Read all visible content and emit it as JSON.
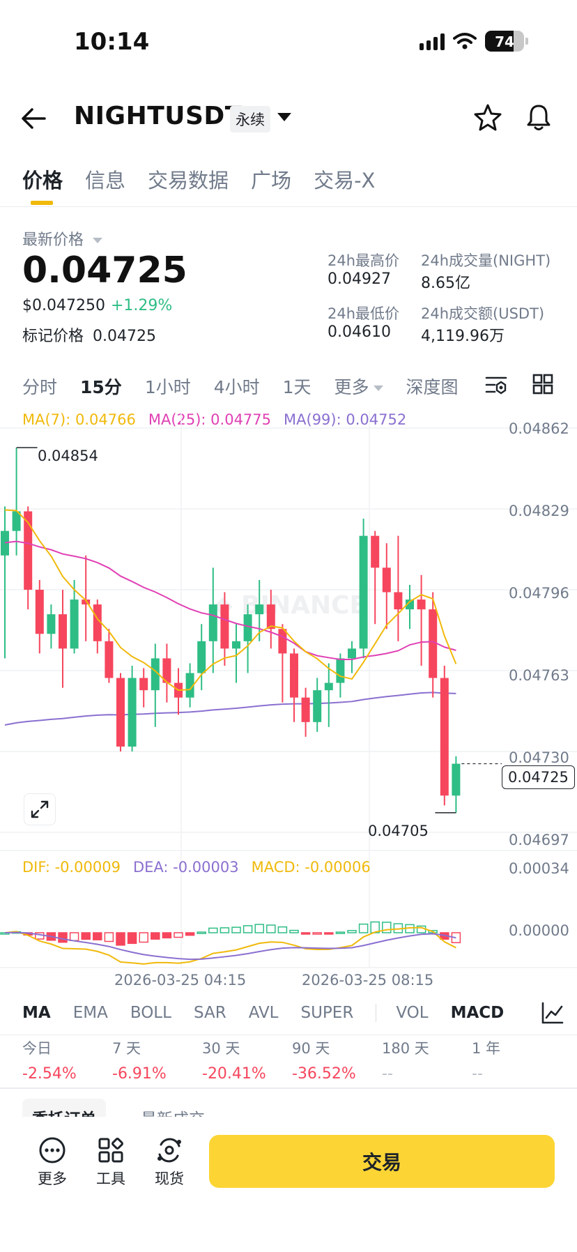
{
  "status_bar": {
    "time": "10:14",
    "battery": "74"
  },
  "header": {
    "symbol": "NIGHTUSDT",
    "badge": "永续"
  },
  "tabs": [
    "价格",
    "信息",
    "交易数据",
    "广场",
    "交易-X"
  ],
  "price_section": {
    "latest_label": "最新价格",
    "price": "0.04725",
    "usd": "$0.047250",
    "change": "+1.29%",
    "mark_label": "标记价格",
    "mark_value": "0.04725",
    "high_label": "24h最高价",
    "high": "0.04927",
    "low_label": "24h最低价",
    "low": "0.04610",
    "vol_label": "24h成交量(NIGHT)",
    "vol": "8.65亿",
    "turnover_label": "24h成交额(USDT)",
    "turnover": "4,119.96万"
  },
  "timeframes": [
    "分时",
    "15分",
    "1小时",
    "4小时",
    "1天",
    "更多",
    "深度图"
  ],
  "ma_legend": {
    "ma7": "MA(7): 0.04766",
    "ma25": "MA(25): 0.04775",
    "ma99": "MA(99): 0.04752"
  },
  "macd_legend": {
    "dif": "DIF: -0.00009",
    "dea": "DEA: -0.00003",
    "macd": "MACD: -0.00006"
  },
  "colors": {
    "up": "#2ebd85",
    "down": "#f6465d",
    "ma7": "#f0b90b",
    "ma25": "#e040b4",
    "ma99": "#8a6fd0",
    "accent": "#fcd535"
  },
  "chart_data": {
    "type": "candlestick",
    "price_axis_ticks": [
      "0.04862",
      "0.04829",
      "0.04796",
      "0.04763",
      "0.04730",
      "0.04697"
    ],
    "macd_axis_ticks": [
      "0.00034",
      "0.00000"
    ],
    "x_labels": [
      "2026-03-25 04:15",
      "2026-03-25 08:15"
    ],
    "high_marker": "0.04854",
    "low_marker": "0.04705",
    "last_price": "0.04725",
    "ylim": [
      0.04697,
      0.04862
    ],
    "candles": [
      [
        0.0481,
        0.0482,
        0.04768,
        0.0483
      ],
      [
        0.0482,
        0.04828,
        0.0481,
        0.04854
      ],
      [
        0.04828,
        0.04796,
        0.04788,
        0.0483
      ],
      [
        0.04796,
        0.04778,
        0.0477,
        0.048
      ],
      [
        0.04778,
        0.04786,
        0.04772,
        0.0479
      ],
      [
        0.04786,
        0.04772,
        0.04756,
        0.04796
      ],
      [
        0.04772,
        0.04792,
        0.0477,
        0.048
      ],
      [
        0.04792,
        0.0479,
        0.04775,
        0.0481
      ],
      [
        0.0479,
        0.04775,
        0.0477,
        0.04792
      ],
      [
        0.04775,
        0.0476,
        0.04758,
        0.0478
      ],
      [
        0.0476,
        0.04732,
        0.0473,
        0.04762
      ],
      [
        0.04732,
        0.0476,
        0.0473,
        0.04765
      ],
      [
        0.0476,
        0.04755,
        0.04748,
        0.04764
      ],
      [
        0.04755,
        0.04768,
        0.0474,
        0.04774
      ],
      [
        0.04768,
        0.04758,
        0.0475,
        0.04774
      ],
      [
        0.04758,
        0.04752,
        0.04745,
        0.04764
      ],
      [
        0.04752,
        0.04762,
        0.04748,
        0.04766
      ],
      [
        0.04762,
        0.04775,
        0.04755,
        0.04782
      ],
      [
        0.04775,
        0.0479,
        0.04762,
        0.04805
      ],
      [
        0.0479,
        0.04772,
        0.04765,
        0.04795
      ],
      [
        0.04772,
        0.04775,
        0.04758,
        0.04782
      ],
      [
        0.04775,
        0.04786,
        0.04762,
        0.0479
      ],
      [
        0.04786,
        0.0479,
        0.04775,
        0.048
      ],
      [
        0.0479,
        0.0478,
        0.04772,
        0.04796
      ],
      [
        0.0478,
        0.0477,
        0.0475,
        0.04782
      ],
      [
        0.0477,
        0.04752,
        0.04742,
        0.04772
      ],
      [
        0.04752,
        0.04742,
        0.04736,
        0.04756
      ],
      [
        0.04742,
        0.04755,
        0.04738,
        0.0476
      ],
      [
        0.04755,
        0.04758,
        0.0474,
        0.04766
      ],
      [
        0.04758,
        0.04768,
        0.04752,
        0.0477
      ],
      [
        0.04768,
        0.04772,
        0.04762,
        0.04775
      ],
      [
        0.04772,
        0.04818,
        0.04768,
        0.04825
      ],
      [
        0.04818,
        0.04805,
        0.04782,
        0.0482
      ],
      [
        0.04805,
        0.04795,
        0.0478,
        0.04815
      ],
      [
        0.04795,
        0.04788,
        0.04775,
        0.04818
      ],
      [
        0.04788,
        0.04792,
        0.0478,
        0.04798
      ],
      [
        0.04792,
        0.04788,
        0.04765,
        0.04802
      ],
      [
        0.04788,
        0.0476,
        0.04752,
        0.04795
      ],
      [
        0.0476,
        0.04712,
        0.04708,
        0.04765
      ],
      [
        0.04712,
        0.04725,
        0.04705,
        0.04728
      ]
    ]
  },
  "indicators": [
    "MA",
    "EMA",
    "BOLL",
    "SAR",
    "AVL",
    "SUPER",
    "VOL",
    "MACD"
  ],
  "performance": [
    {
      "label": "今日",
      "value": "-2.54%"
    },
    {
      "label": "7 天",
      "value": "-6.91%"
    },
    {
      "label": "30 天",
      "value": "-20.41%"
    },
    {
      "label": "90 天",
      "value": "-36.52%"
    },
    {
      "label": "180 天",
      "value": "--"
    },
    {
      "label": "1 年",
      "value": "--"
    }
  ],
  "subtabs": [
    "委托订单",
    "最新成交"
  ],
  "bottom_nav": {
    "more": "更多",
    "tools": "工具",
    "spot": "现货",
    "trade": "交易"
  }
}
